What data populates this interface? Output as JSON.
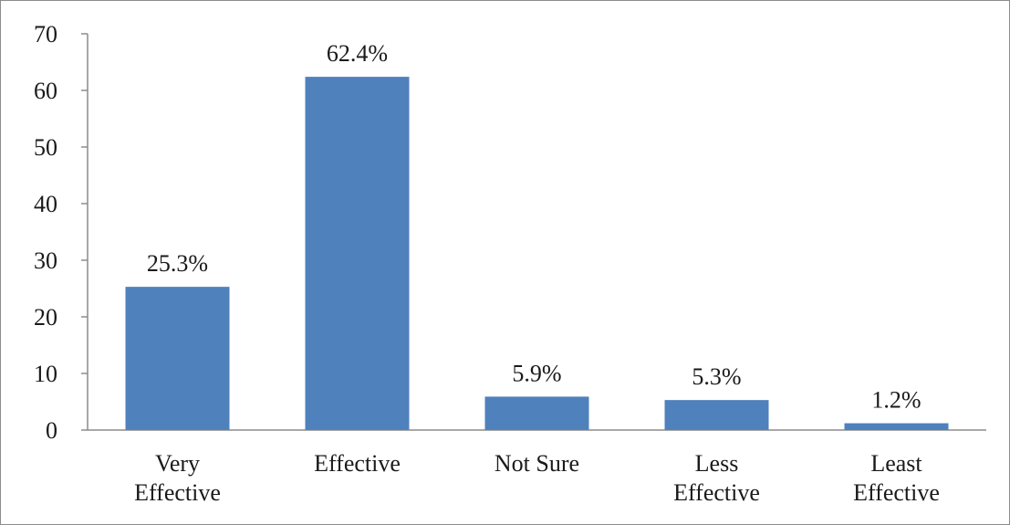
{
  "chart_data": {
    "type": "bar",
    "categories": [
      [
        "Very",
        "Effective"
      ],
      [
        "Effective"
      ],
      [
        "Not Sure"
      ],
      [
        "Less",
        "Effective"
      ],
      [
        "Least",
        "Effective"
      ]
    ],
    "values": [
      25.3,
      62.4,
      5.9,
      5.3,
      1.2
    ],
    "data_labels": [
      "25.3%",
      "62.4%",
      "5.9%",
      "5.3%",
      "1.2%"
    ],
    "ylim": [
      0,
      70
    ],
    "yticks": [
      0,
      10,
      20,
      30,
      40,
      50,
      60,
      70
    ],
    "grid": false,
    "legend": "none",
    "bar_color": "#4f81bd"
  }
}
